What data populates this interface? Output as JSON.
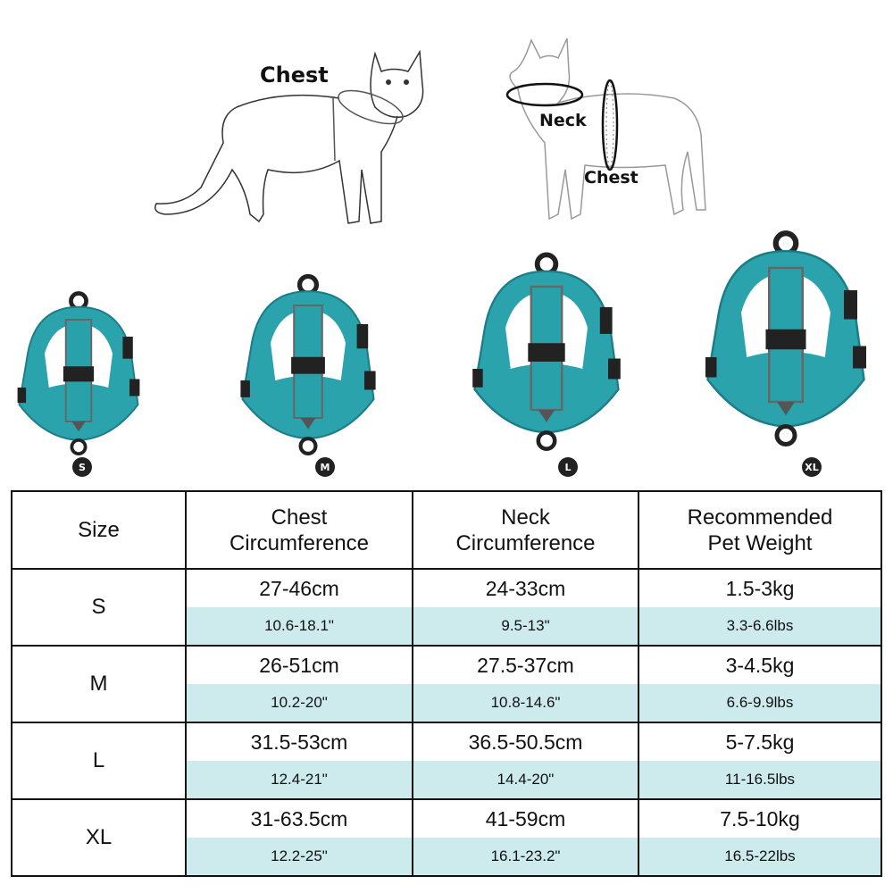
{
  "diagram": {
    "cat_chest_label": "Chest",
    "dog_neck_label": "Neck",
    "dog_chest_label": "Chest"
  },
  "harness_color": "#2aa3ad",
  "sizes": [
    {
      "badge": "S"
    },
    {
      "badge": "M"
    },
    {
      "badge": "L"
    },
    {
      "badge": "XL"
    }
  ],
  "table": {
    "headers": [
      "Size",
      "Chest\nCircumference",
      "Neck\nCircumference",
      "Recommended\nPet Weight"
    ],
    "rows": [
      {
        "size": "S",
        "chest_cm": "27-46cm",
        "chest_in": "10.6-18.1\"",
        "neck_cm": "24-33cm",
        "neck_in": "9.5-13\"",
        "weight_kg": "1.5-3kg",
        "weight_lbs": "3.3-6.6lbs"
      },
      {
        "size": "M",
        "chest_cm": "26-51cm",
        "chest_in": "10.2-20\"",
        "neck_cm": "27.5-37cm",
        "neck_in": "10.8-14.6\"",
        "weight_kg": "3-4.5kg",
        "weight_lbs": "6.6-9.9lbs"
      },
      {
        "size": "L",
        "chest_cm": "31.5-53cm",
        "chest_in": "12.4-21\"",
        "neck_cm": "36.5-50.5cm",
        "neck_in": "14.4-20\"",
        "weight_kg": "5-7.5kg",
        "weight_lbs": "11-16.5lbs"
      },
      {
        "size": "XL",
        "chest_cm": "31-63.5cm",
        "chest_in": "12.2-25\"",
        "neck_cm": "41-59cm",
        "neck_in": "16.1-23.2\"",
        "weight_kg": "7.5-10kg",
        "weight_lbs": "16.5-22lbs"
      }
    ]
  }
}
